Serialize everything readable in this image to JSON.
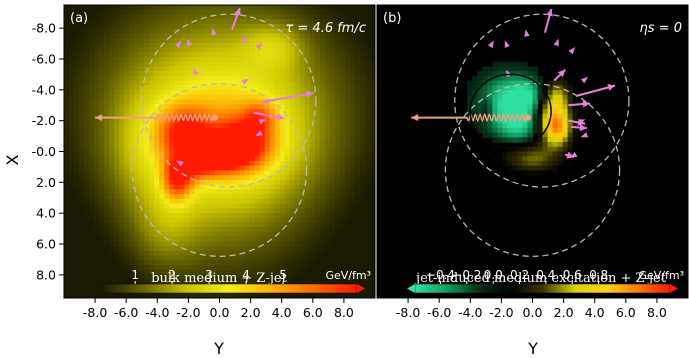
{
  "chart_data": [
    {
      "type": "heatmap",
      "panel_label": "(a)",
      "annotation": "τ = 4.6 fm/c",
      "caption": "bulk medium + Z-jet",
      "xlabel": "Y",
      "ylabel": "X",
      "xlim": [
        -10,
        10
      ],
      "ylim": [
        -9.5,
        9.5
      ],
      "xticks": [
        "-8.0",
        "-6.0",
        "-4.0",
        "-2.0",
        "0.0",
        "2.0",
        "4.0",
        "6.0",
        "8.0"
      ],
      "yticks": [
        "-8.0",
        "-6.0",
        "-4.0",
        "-2.0",
        "-0.0",
        "2.0",
        "4.0",
        "6.0",
        "8.0"
      ],
      "colorbar": {
        "ticks": [
          "1",
          "2",
          "3",
          "4",
          "5"
        ],
        "unit": "GeV/fm³",
        "min": 0.5,
        "max": 5.8,
        "colors": [
          "#1a1a00",
          "#6b6a00",
          "#c9c400",
          "#f5ee1a",
          "#ffb000",
          "#ff6a00",
          "#ff1a00"
        ]
      },
      "background": "#1a1a02",
      "blobs": [
        {
          "y": 0,
          "x": -3.5,
          "sy": 7,
          "sx": 5,
          "v": 1.2
        },
        {
          "y": 0,
          "x": 0,
          "sy": 5,
          "sx": 6.5,
          "v": 1.6
        },
        {
          "y": 0.5,
          "x": -1,
          "sy": 3.5,
          "sx": 3,
          "v": 1.4
        },
        {
          "y": -2.3,
          "x": -1.2,
          "sy": 1.2,
          "sx": 1.2,
          "v": 2.8
        },
        {
          "y": 1.5,
          "x": -0.5,
          "sy": 1.4,
          "sx": 1.1,
          "v": 3.0
        },
        {
          "y": 0.2,
          "x": 0.3,
          "sy": 1.2,
          "sx": 0.8,
          "v": 2.2
        },
        {
          "y": -2.7,
          "x": 1.8,
          "sy": 0.7,
          "sx": 1.0,
          "v": 3.1
        },
        {
          "y": -1.4,
          "x": 0.8,
          "sy": 0.9,
          "sx": 0.7,
          "v": 2.0
        },
        {
          "y": 2.6,
          "x": -2.3,
          "sy": 0.8,
          "sx": 0.7,
          "v": 1.6
        },
        {
          "y": -3.5,
          "x": 5,
          "sy": 1.5,
          "sx": 2.0,
          "v": 0.8
        },
        {
          "y": 3.5,
          "x": -6.8,
          "sy": 1.3,
          "sx": 1.0,
          "v": 1.0
        },
        {
          "y": -5.0,
          "x": 0,
          "sy": 1.5,
          "sx": 2.5,
          "v": 0.6
        }
      ],
      "arrows": [
        {
          "y": -4.2,
          "x": -2.2,
          "len": 3.8,
          "angle": 180,
          "color": "#f0a080"
        },
        {
          "y": 0.8,
          "x": -7.9,
          "len": 1.5,
          "angle": 70,
          "color": "#e87ee0"
        },
        {
          "y": 2.7,
          "x": -3.2,
          "len": 3.4,
          "angle": 10,
          "color": "#e87ee0"
        },
        {
          "y": 2.2,
          "x": -2.5,
          "len": 2.0,
          "angle": -10,
          "color": "#e87ee0"
        }
      ]
    },
    {
      "type": "heatmap",
      "panel_label": "(b)",
      "annotation": "ηs = 0",
      "caption": "jet-induced medium excitation + Z-jet",
      "xlabel": "Y",
      "ylabel": "",
      "xlim": [
        -10,
        10
      ],
      "ylim": [
        -9.5,
        9.5
      ],
      "xticks": [
        "-8.0",
        "-6.0",
        "-4.0",
        "-2.0",
        "0.0",
        "2.0",
        "4.0",
        "6.0",
        "8.0"
      ],
      "colorbar": {
        "ticks": [
          "−0.4",
          "−0.2",
          "0.0",
          "0.2",
          "0.4",
          "0.6",
          "0.8"
        ],
        "unit": "GeV/fm³",
        "min": -0.45,
        "max": 0.95,
        "colors": [
          "#30e0a0",
          "#10a060",
          "#063018",
          "#000000",
          "#3a3600",
          "#d8d000",
          "#ffd020",
          "#ff7a00",
          "#ff1a00"
        ]
      },
      "background": "#000000",
      "blobs": [
        {
          "y": -1.7,
          "x": -3.2,
          "sy": 1.3,
          "sx": 1.3,
          "v": -0.4
        },
        {
          "y": -0.8,
          "x": -1.7,
          "sy": 1.0,
          "sx": 0.9,
          "v": -0.3
        },
        {
          "y": -0.3,
          "x": -3.6,
          "sy": 0.8,
          "sx": 0.8,
          "v": -0.3
        },
        {
          "y": 1.3,
          "x": -2.3,
          "sy": 0.8,
          "sx": 1.1,
          "v": 0.55
        },
        {
          "y": 1.6,
          "x": -1.4,
          "sy": 0.6,
          "sx": 0.7,
          "v": 0.4
        },
        {
          "y": 0.0,
          "x": 0.7,
          "sy": 1.2,
          "sx": 0.5,
          "v": 0.25
        },
        {
          "y": -0.2,
          "x": -0.1,
          "sy": 1.8,
          "sx": 0.5,
          "v": 0.18
        },
        {
          "y": 1.6,
          "x": -3.8,
          "sy": 0.6,
          "sx": 0.8,
          "v": 0.22
        },
        {
          "y": -2.9,
          "x": -2.8,
          "sy": 0.3,
          "sx": 0.6,
          "v": 0.15
        }
      ],
      "arrows": [
        {
          "y": -4.2,
          "x": -2.2,
          "len": 3.6,
          "angle": 180,
          "color": "#f0a080"
        },
        {
          "y": 0.8,
          "x": -7.7,
          "len": 1.6,
          "angle": 75,
          "color": "#e87ee0"
        },
        {
          "y": 1.4,
          "x": -4.6,
          "len": 1.0,
          "angle": 45,
          "color": "#e87ee0"
        },
        {
          "y": 2.8,
          "x": -3.6,
          "len": 2.6,
          "angle": 15,
          "color": "#e87ee0"
        },
        {
          "y": 2.3,
          "x": -3.0,
          "len": 1.4,
          "angle": 5,
          "color": "#e87ee0"
        },
        {
          "y": 2.3,
          "x": -2.0,
          "len": 1.1,
          "angle": -10,
          "color": "#e87ee0"
        },
        {
          "y": 2.5,
          "x": -1.6,
          "len": 1.0,
          "angle": -5,
          "color": "#e87ee0"
        },
        {
          "y": 2.1,
          "x": 0.2,
          "len": 0.6,
          "angle": -15,
          "color": "#e87ee0"
        }
      ]
    }
  ]
}
